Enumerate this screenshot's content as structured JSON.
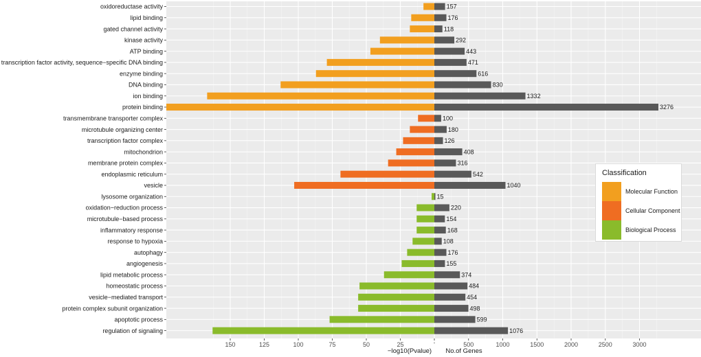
{
  "chart_data": {
    "type": "bar",
    "categories": [
      "oxidoreductase activity",
      "lipid binding",
      "gated channel activity",
      "kinase activity",
      "ATP binding",
      "transcription factor activity, sequence−specific DNA binding",
      "enzyme binding",
      "DNA binding",
      "ion binding",
      "protein binding",
      "transmembrane transporter complex",
      "microtubule organizing center",
      "transcription factor complex",
      "mitochondrion",
      "membrane protein complex",
      "endoplasmic reticulum",
      "vesicle",
      "lysosome organization",
      "oxidation−reduction process",
      "microtubule−based process",
      "inflammatory response",
      "response to hypoxia",
      "autophagy",
      "angiogenesis",
      "lipid metabolic process",
      "homeostatic process",
      "vesicle−mediated transport",
      "protein complex subunit organization",
      "apoptotic process",
      "regulation of signaling"
    ],
    "classes": [
      "Molecular Function",
      "Molecular Function",
      "Molecular Function",
      "Molecular Function",
      "Molecular Function",
      "Molecular Function",
      "Molecular Function",
      "Molecular Function",
      "Molecular Function",
      "Molecular Function",
      "Cellular Component",
      "Cellular Component",
      "Cellular Component",
      "Cellular Component",
      "Cellular Component",
      "Cellular Component",
      "Cellular Component",
      "Biological Process",
      "Biological Process",
      "Biological Process",
      "Biological Process",
      "Biological Process",
      "Biological Process",
      "Biological Process",
      "Biological Process",
      "Biological Process",
      "Biological Process",
      "Biological Process",
      "Biological Process",
      "Biological Process"
    ],
    "series": [
      {
        "name": "−log10(Pvalue)",
        "values": [
          8,
          17,
          18,
          40,
          47,
          79,
          87,
          113,
          167,
          197,
          12,
          18,
          23,
          28,
          34,
          69,
          103,
          2,
          13,
          13,
          13,
          16,
          20,
          24,
          37,
          55,
          56,
          56,
          77,
          163
        ]
      },
      {
        "name": "No.of Genes",
        "values": [
          157,
          176,
          118,
          292,
          443,
          471,
          616,
          830,
          1332,
          3276,
          100,
          180,
          126,
          408,
          316,
          542,
          1040,
          15,
          220,
          154,
          168,
          108,
          176,
          155,
          374,
          484,
          454,
          498,
          599,
          1076
        ]
      }
    ],
    "left_ticks": [
      "150",
      "125",
      "100",
      "75",
      "50",
      "25"
    ],
    "left_tick_values": [
      150,
      125,
      100,
      75,
      50,
      25
    ],
    "left_xlim": [
      197,
      0
    ],
    "right_ticks": [
      "500",
      "1000",
      "1500",
      "2000",
      "2500",
      "3000"
    ],
    "right_tick_values": [
      500,
      1000,
      1500,
      2000,
      2500,
      3000
    ],
    "right_xlim": [
      0,
      3380
    ],
    "center_tick": "'",
    "xlabel_left": "−log10(Pvalue)",
    "xlabel_right": "No.of Genes",
    "grid": true,
    "legend_position": "right",
    "colors": {
      "Molecular Function": "#f29f1f",
      "Cellular Component": "#ef6d22",
      "Biological Process": "#8abb2b",
      "genes": "#595959",
      "panel": "#ebebeb",
      "grid": "#ffffff"
    }
  },
  "legend": {
    "title": "Classification",
    "items": [
      {
        "label": "Molecular Function",
        "color": "#f29f1f"
      },
      {
        "label": "Cellular Component",
        "color": "#ef6d22"
      },
      {
        "label": "Biological Process",
        "color": "#8abb2b"
      }
    ]
  }
}
